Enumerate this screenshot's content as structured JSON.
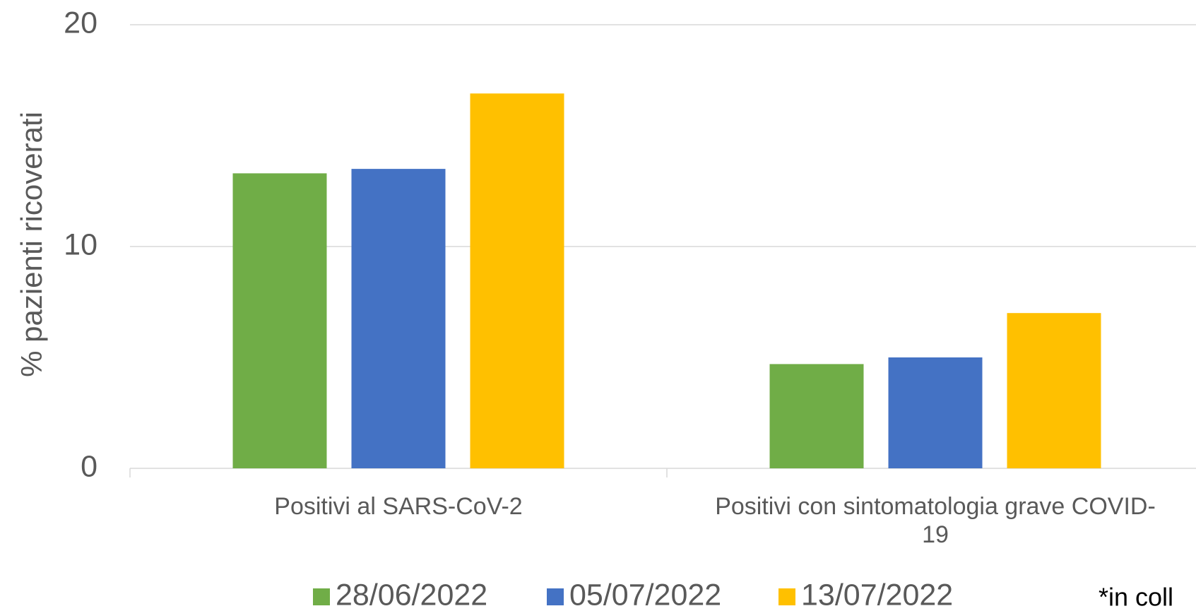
{
  "chart_data": {
    "type": "bar",
    "y_label": "% pazienti ricoverati",
    "categories": [
      "Positivi al SARS-CoV-2",
      "Positivi con sintomatologia grave COVID-19"
    ],
    "series": [
      {
        "name": "28/06/2022",
        "color": "#70ad47",
        "values": [
          13.3,
          4.7
        ]
      },
      {
        "name": "05/07/2022",
        "color": "#4472c4",
        "values": [
          13.5,
          5.0
        ]
      },
      {
        "name": "13/07/2022",
        "color": "#ffc000",
        "values": [
          16.9,
          7.0
        ]
      }
    ],
    "ylim": [
      0,
      20
    ],
    "yticks": [
      0,
      10,
      20
    ],
    "grid": true,
    "legend": "bottom",
    "note": "*in coll"
  }
}
